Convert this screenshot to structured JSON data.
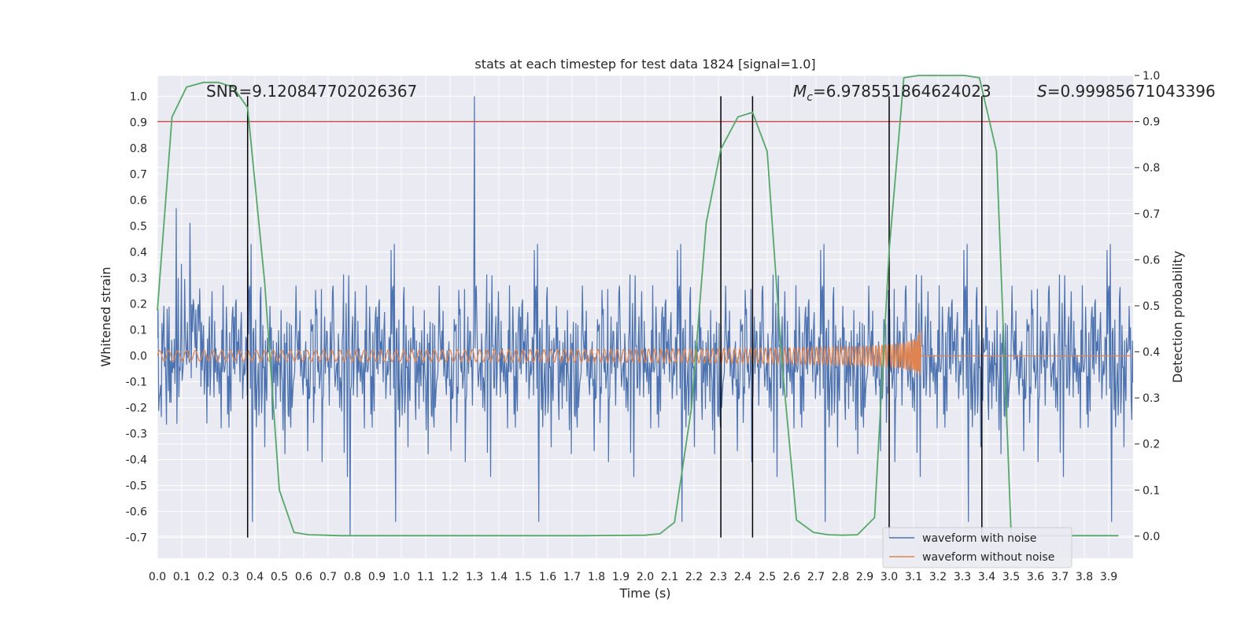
{
  "chart_data": {
    "type": "line",
    "title": "stats at each timestep for test data 1824 [signal=1.0]",
    "xlabel": "Time (s)",
    "ylabel": "Whitened strain",
    "y2label": "Detection probability",
    "xlim": [
      0.0,
      4.0
    ],
    "ylim": [
      -0.78,
      1.08
    ],
    "y2lim": [
      -0.048,
      1.0
    ],
    "x_ticks": [
      "0.0",
      "0.1",
      "0.2",
      "0.3",
      "0.4",
      "0.5",
      "0.6",
      "0.7",
      "0.8",
      "0.9",
      "1.0",
      "1.1",
      "1.2",
      "1.3",
      "1.4",
      "1.5",
      "1.6",
      "1.7",
      "1.8",
      "1.9",
      "2.0",
      "2.1",
      "2.2",
      "2.3",
      "2.4",
      "2.5",
      "2.6",
      "2.7",
      "2.8",
      "2.9",
      "3.0",
      "3.1",
      "3.2",
      "3.3",
      "3.4",
      "3.5",
      "3.6",
      "3.7",
      "3.8",
      "3.9"
    ],
    "y_ticks": [
      "-0.7",
      "-0.6",
      "-0.5",
      "-0.4",
      "-0.3",
      "-0.2",
      "-0.1",
      "0.0",
      "0.1",
      "0.2",
      "0.3",
      "0.4",
      "0.5",
      "0.6",
      "0.7",
      "0.8",
      "0.9",
      "1.0"
    ],
    "y2_ticks": [
      "0.0",
      "0.1",
      "0.2",
      "0.3",
      "0.4",
      "0.5",
      "0.6",
      "0.7",
      "0.8",
      "0.9",
      "1.0"
    ],
    "grid": true,
    "legend_position": "lower-right",
    "annotations": {
      "snr": "SNR=9.120847702026367",
      "mc": "=6.978551864624023",
      "mc_symbol": "M",
      "mc_subscript": "c",
      "s": "=0.99985671043396",
      "s_symbol": "S"
    },
    "threshold_y": 0.9,
    "vertical_lines_x": [
      0.37,
      2.31,
      2.44,
      3.0,
      3.38
    ],
    "series": [
      {
        "name": "waveform with noise",
        "color": "#4c72b0",
        "description_stats": {
          "mean": 0.0,
          "typical_amplitude": 0.17,
          "max": 1.0,
          "min": -0.69
        }
      },
      {
        "name": "waveform without noise",
        "color": "#dd8452",
        "chirp_start_amplitude": 0.02,
        "chirp_end_x": 3.13,
        "chirp_peak_amplitude": 0.25
      },
      {
        "name": "detection probability",
        "color": "#55a868",
        "axis": "right",
        "x": [
          0.0,
          0.06,
          0.12,
          0.19,
          0.25,
          0.31,
          0.37,
          0.44,
          0.5,
          0.56,
          0.62,
          0.69,
          0.75,
          0.81,
          0.87,
          0.94,
          1.0,
          1.25,
          1.5,
          1.75,
          2.0,
          2.06,
          2.12,
          2.19,
          2.25,
          2.31,
          2.38,
          2.44,
          2.5,
          2.56,
          2.62,
          2.69,
          2.75,
          2.81,
          2.87,
          2.94,
          3.0,
          3.06,
          3.12,
          3.19,
          3.25,
          3.31,
          3.37,
          3.44,
          3.5,
          3.56,
          3.62,
          3.69,
          3.75,
          3.81,
          3.87,
          3.94
        ],
        "y": [
          0.49,
          0.91,
          0.975,
          0.985,
          0.985,
          0.975,
          0.93,
          0.55,
          0.1,
          0.008,
          0.003,
          0.002,
          0.001,
          0.001,
          0.001,
          0.001,
          0.001,
          0.001,
          0.001,
          0.001,
          0.002,
          0.005,
          0.03,
          0.28,
          0.68,
          0.84,
          0.91,
          0.92,
          0.835,
          0.38,
          0.035,
          0.008,
          0.003,
          0.002,
          0.003,
          0.04,
          0.62,
          0.995,
          1.0,
          1.0,
          1.0,
          1.0,
          0.995,
          0.835,
          0.005,
          0.001,
          0.001,
          0.001,
          0.001,
          0.001,
          0.001,
          0.001
        ]
      }
    ]
  },
  "colors": {
    "background": "#eaeaf2",
    "grid": "#ffffff",
    "threshold": "#c44e52",
    "vline": "#000000"
  }
}
